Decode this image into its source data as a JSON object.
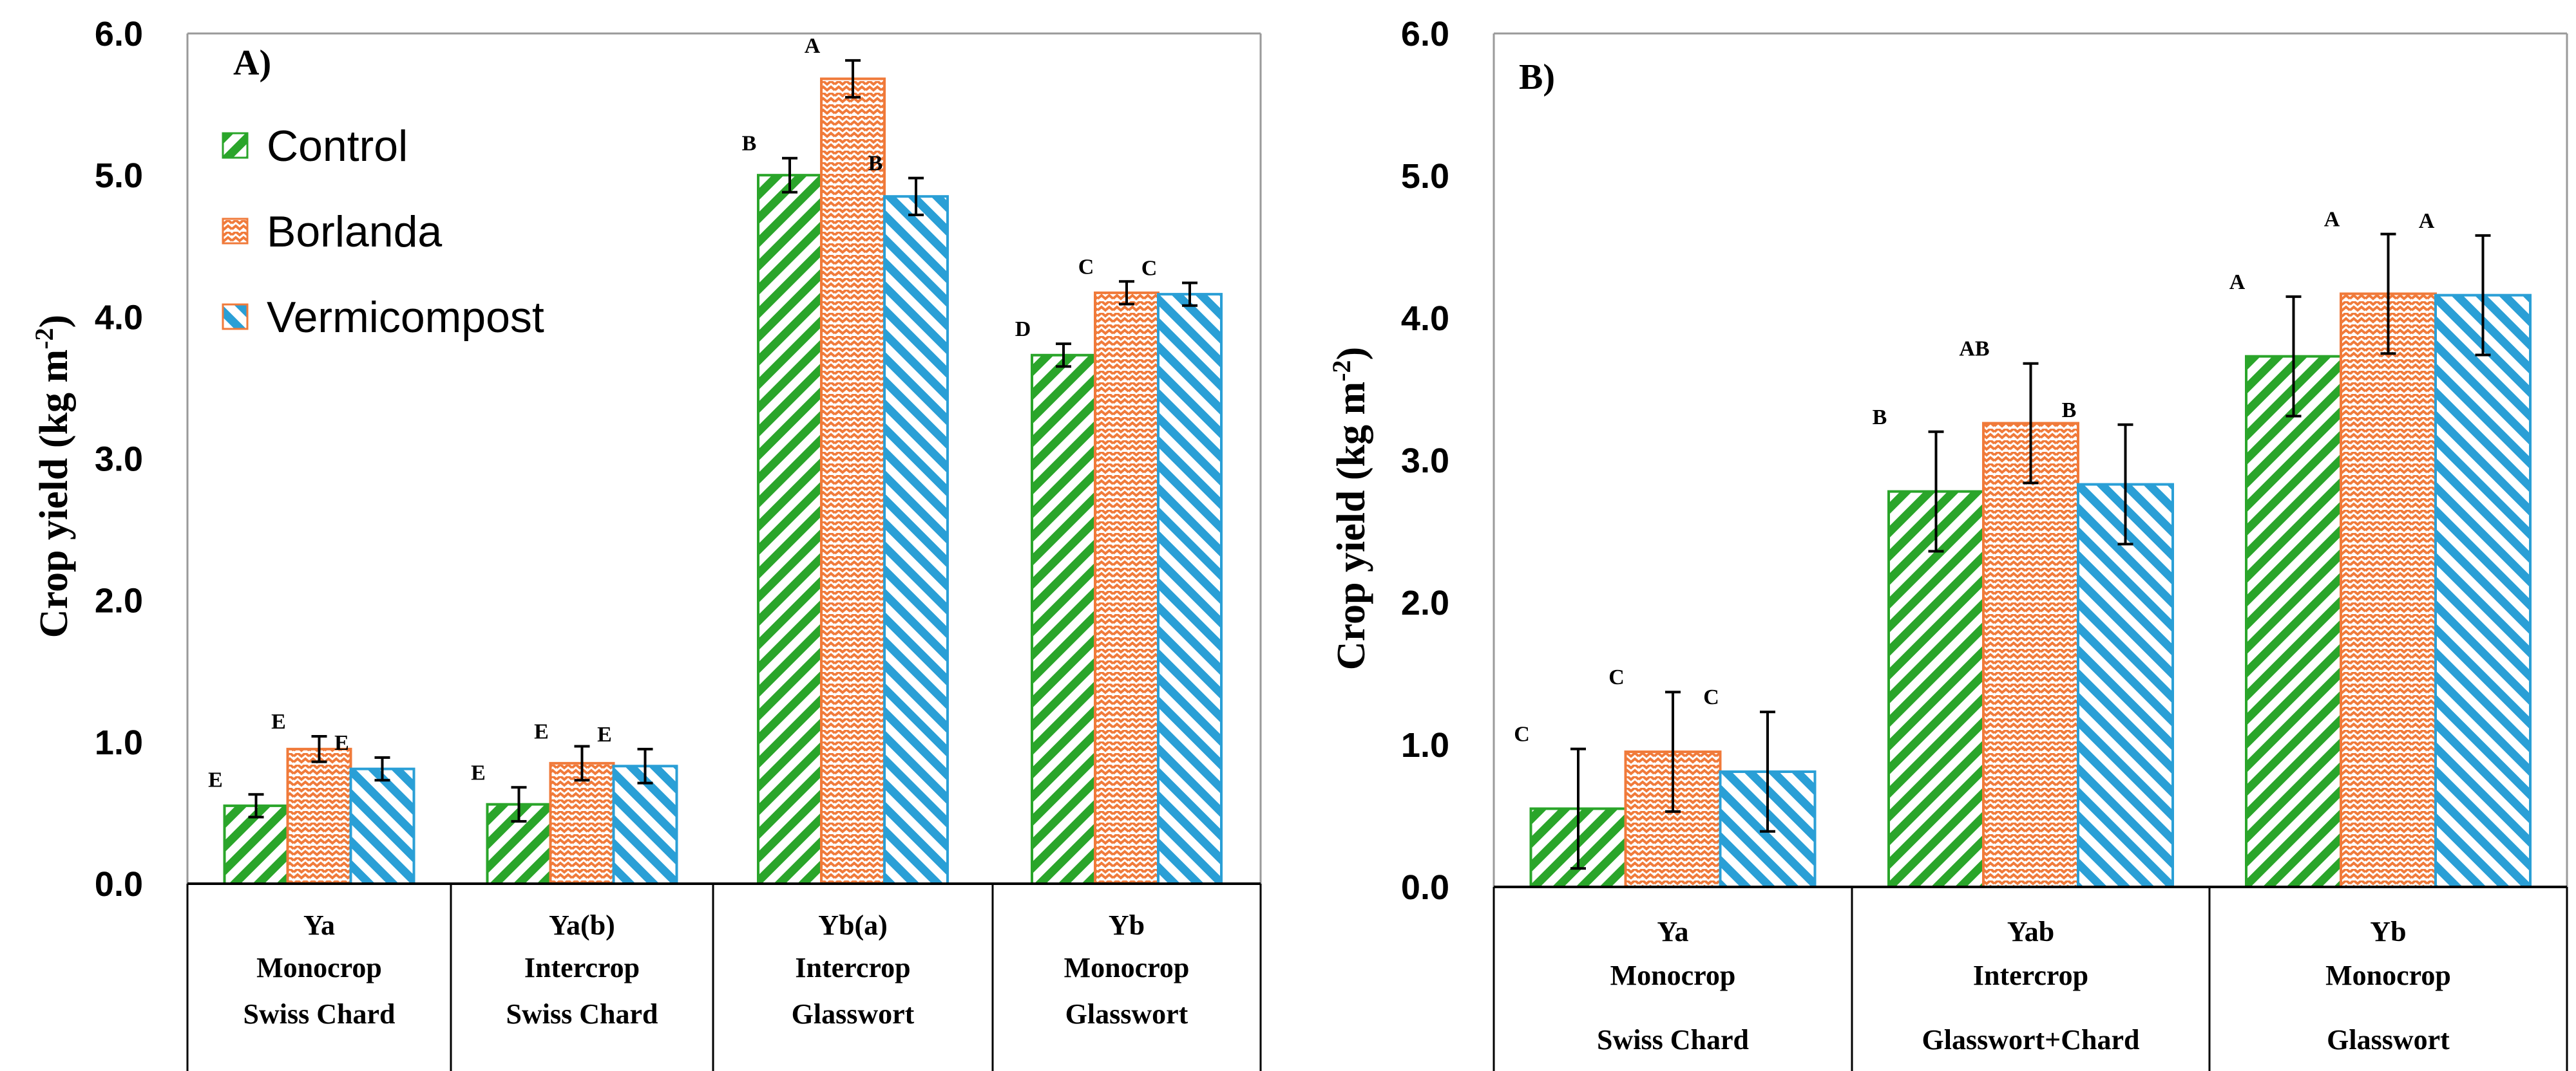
{
  "colors": {
    "Control": "#2aa52a",
    "Borlanda": "#f07a3a",
    "Vermicompost": "#2a9fd6"
  },
  "chart_data": [
    {
      "type": "bar",
      "panel_label": "A)",
      "ylabel": "Crop yield  (kg m-2)",
      "ylim": [
        0,
        6
      ],
      "yticks": [
        "0.0",
        "1.0",
        "2.0",
        "3.0",
        "4.0",
        "5.0",
        "6.0"
      ],
      "legend": [
        "Control",
        "Borlanda",
        "Vermicompost"
      ],
      "categories": [
        {
          "code": "Ya",
          "system": "Monocrop",
          "crop": "Swiss Chard"
        },
        {
          "code": "Ya(b)",
          "system": "Intercrop",
          "crop": "Swiss Chard"
        },
        {
          "code": "Yb(a)",
          "system": "Intercrop",
          "crop": "Glasswort"
        },
        {
          "code": "Yb",
          "system": "Monocrop",
          "crop": "Glasswort"
        }
      ],
      "series": [
        {
          "name": "Control",
          "values": [
            0.55,
            0.56,
            5.0,
            3.73
          ],
          "errors": [
            0.08,
            0.12,
            0.12,
            0.08
          ],
          "letters": [
            "E",
            "E",
            "B",
            "D"
          ]
        },
        {
          "name": "Borlanda",
          "values": [
            0.95,
            0.85,
            5.68,
            4.17
          ],
          "errors": [
            0.09,
            0.12,
            0.13,
            0.08
          ],
          "letters": [
            "E",
            "E",
            "A",
            "C"
          ]
        },
        {
          "name": "Vermicompost",
          "values": [
            0.81,
            0.83,
            4.85,
            4.16
          ],
          "errors": [
            0.08,
            0.12,
            0.13,
            0.08
          ],
          "letters": [
            "E",
            "E",
            "B",
            "C"
          ]
        }
      ]
    },
    {
      "type": "bar",
      "panel_label": "B)",
      "ylabel": "Crop yield  (kg m-2)",
      "ylim": [
        0,
        6
      ],
      "yticks": [
        "0.0",
        "1.0",
        "2.0",
        "3.0",
        "4.0",
        "5.0",
        "6.0"
      ],
      "categories": [
        {
          "code": "Ya",
          "system": "Monocrop",
          "crop": "Swiss Chard"
        },
        {
          "code": "Yab",
          "system": "Intercrop",
          "crop": "Glasswort+Chard"
        },
        {
          "code": "Yb",
          "system": "Monocrop",
          "crop": "Glasswort"
        }
      ],
      "series": [
        {
          "name": "Control",
          "values": [
            0.55,
            2.78,
            3.73
          ],
          "errors": [
            0.42,
            0.42,
            0.42
          ],
          "letters": [
            "C",
            "B",
            "A"
          ]
        },
        {
          "name": "Borlanda",
          "values": [
            0.95,
            3.26,
            4.17
          ],
          "errors": [
            0.42,
            0.42,
            0.42
          ],
          "letters": [
            "C",
            "AB",
            "A"
          ]
        },
        {
          "name": "Vermicompost",
          "values": [
            0.81,
            2.83,
            4.16
          ],
          "errors": [
            0.42,
            0.42,
            0.42
          ],
          "letters": [
            "C",
            "B",
            "A"
          ]
        }
      ]
    }
  ]
}
